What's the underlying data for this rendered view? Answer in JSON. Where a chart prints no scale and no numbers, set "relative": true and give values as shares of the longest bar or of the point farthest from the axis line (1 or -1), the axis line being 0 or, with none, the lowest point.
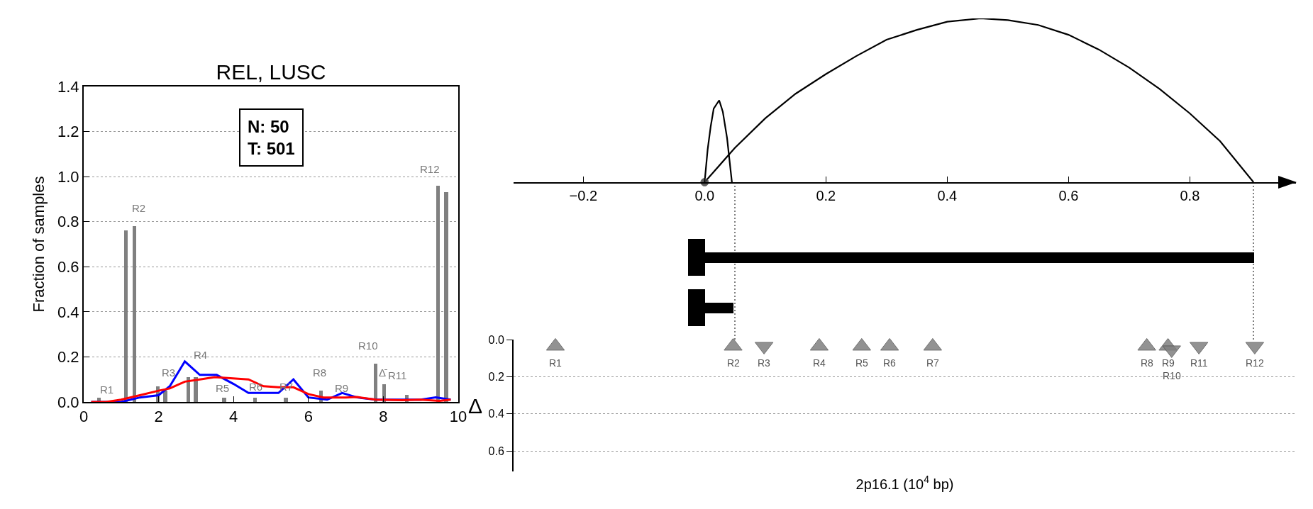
{
  "chart_data": [
    {
      "type": "bar",
      "title": "REL, LUSC",
      "ylabel": "Fraction of samples",
      "xlim": [
        0,
        10
      ],
      "xticks": [
        0,
        2,
        4,
        6,
        8,
        10
      ],
      "ylim": [
        0,
        1.4
      ],
      "yticks": [
        {
          "value": 0,
          "label": "0.0"
        },
        {
          "value": 0.2,
          "label": "0.2"
        },
        {
          "value": 0.4,
          "label": "0.4"
        },
        {
          "value": 0.6,
          "label": "0.6"
        },
        {
          "value": 0.8,
          "label": "0.8"
        },
        {
          "value": 1.0,
          "label": "1.0"
        },
        {
          "value": 1.2,
          "label": "1.2"
        },
        {
          "value": 1.4,
          "label": "1.4"
        }
      ],
      "grid": "y",
      "series": [
        {
          "color": "#808080",
          "x": [
            0.41,
            1.13,
            1.35,
            1.98,
            2.18,
            2.79,
            2.99,
            3.75,
            4.57,
            5.4,
            6.33,
            7.8,
            8.02,
            8.63,
            9.46,
            9.68
          ],
          "values": [
            0.02,
            0.76,
            0.78,
            0.07,
            0.05,
            0.11,
            0.11,
            0.02,
            0.02,
            0.02,
            0.05,
            0.17,
            0.08,
            0.03,
            0.96,
            0.93
          ]
        },
        {
          "type": "line",
          "color": "#0000ff",
          "x": [
            0.2,
            1.0,
            1.5,
            2.0,
            2.3,
            2.7,
            3.1,
            3.55,
            4.0,
            4.4,
            5.2,
            5.6,
            6.0,
            6.5,
            6.9,
            7.3,
            7.8,
            8.5,
            9.0,
            9.4,
            9.8
          ],
          "values": [
            0,
            0,
            0.02,
            0.03,
            0.07,
            0.18,
            0.12,
            0.12,
            0.08,
            0.04,
            0.04,
            0.1,
            0.02,
            0.01,
            0.04,
            0.02,
            0.01,
            0.01,
            0.01,
            0.02,
            0.01
          ]
        },
        {
          "type": "line",
          "color": "#ff0000",
          "x": [
            0.2,
            0.6,
            1.0,
            1.5,
            2.0,
            2.3,
            2.7,
            3.1,
            3.5,
            4.4,
            4.8,
            5.2,
            5.6,
            6.0,
            6.4,
            7.0,
            7.3,
            7.8,
            8.5,
            9.0,
            9.5,
            9.8
          ],
          "values": [
            0,
            0,
            0.01,
            0.03,
            0.05,
            0.06,
            0.09,
            0.1,
            0.11,
            0.1,
            0.07,
            0.065,
            0.065,
            0.035,
            0.02,
            0.02,
            0.022,
            0.01,
            0.008,
            0.01,
            0.005,
            0.01
          ]
        }
      ],
      "annotations": [
        "N: 50\nT: 501",
        "R1",
        "R2",
        "R3",
        "R4",
        "R5",
        "R6",
        "R7",
        "R8",
        "R9",
        "R10",
        "R11",
        "R12",
        "Δ̄"
      ]
    },
    {
      "type": "line",
      "relative": true,
      "xlim": [
        -0.315,
        0.975
      ],
      "xticks": [
        {
          "value": -0.2,
          "label": "−0.2"
        },
        {
          "value": 0,
          "label": "0.0"
        },
        {
          "value": 0.2,
          "label": "0.2"
        },
        {
          "value": 0.4,
          "label": "0.4"
        },
        {
          "value": 0.6,
          "label": "0.6"
        },
        {
          "value": 0.8,
          "label": "0.8"
        }
      ],
      "tick_labels": "x",
      "series": [
        {
          "color": "#000000",
          "x": [
            0,
            0.005,
            0.01,
            0.015,
            0.024,
            0.03,
            0.037,
            0.045
          ],
          "values": [
            0,
            0.2,
            0.34,
            0.45,
            0.5,
            0.43,
            0.27,
            0
          ]
        },
        {
          "color": "#000000",
          "x": [
            0,
            0.05,
            0.1,
            0.15,
            0.2,
            0.25,
            0.3,
            0.35,
            0.4,
            0.455,
            0.5,
            0.55,
            0.6,
            0.65,
            0.7,
            0.75,
            0.8,
            0.85,
            0.905
          ],
          "values": [
            0,
            0.21,
            0.39,
            0.54,
            0.66,
            0.77,
            0.87,
            0.93,
            0.98,
            1,
            0.99,
            0.96,
            0.9,
            0.81,
            0.7,
            0.57,
            0.42,
            0.25,
            0
          ]
        },
        {
          "type": "scatter",
          "marker": "circle",
          "color": "#404040",
          "x": [
            0
          ],
          "values": [
            0
          ]
        }
      ]
    },
    {
      "type": "scatter",
      "xlabel": "2p16.1 (10$^{4}$ bp)",
      "ylabel": "Δ",
      "xlim": [
        -0.315,
        0.975
      ],
      "ylim": [
        0.71,
        0
      ],
      "yticks": [
        {
          "value": 0,
          "label": "0.0"
        },
        {
          "value": 0.2,
          "label": "0.2"
        },
        {
          "value": 0.4,
          "label": "0.4"
        },
        {
          "value": 0.6,
          "label": "0.6"
        }
      ],
      "tick_labels": "y",
      "grid": "y",
      "series": [
        {
          "color": "#808080",
          "marker": "triangle",
          "x": [
            -0.246,
            0.047,
            0.189,
            0.259,
            0.305,
            0.376,
            0.729,
            0.764
          ],
          "values": [
            0.036,
            0.036,
            0.036,
            0.036,
            0.036,
            0.036,
            0.036,
            0.036
          ]
        },
        {
          "color": "#808080",
          "marker": "triangle-down",
          "x": [
            0.098,
            0.77,
            0.815,
            0.907
          ],
          "values": [
            0.036,
            0.055,
            0.036,
            0.036
          ]
        }
      ],
      "annotations": [
        "R1",
        "R2",
        "R3",
        "R4",
        "R5",
        "R6",
        "R7",
        "R8",
        "R9",
        "R10",
        "R11",
        "R12"
      ]
    }
  ]
}
